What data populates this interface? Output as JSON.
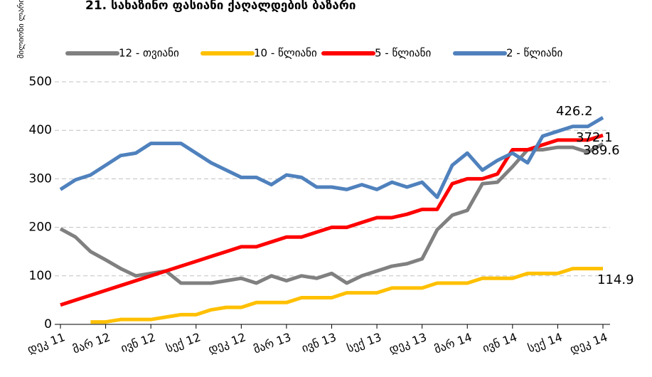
{
  "chart_data": {
    "type": "line",
    "title": "21. სახაზინო ფასიანი ქაღალდების ბაზარი",
    "y_label": "მილიონი ლარი",
    "categories": [
      "დეკ 11",
      null,
      null,
      "მარ 12",
      null,
      null,
      "ივნ 12",
      null,
      null,
      "სექ 12",
      null,
      null,
      "დეკ 12",
      null,
      null,
      "მარ 13",
      null,
      null,
      "ივნ 13",
      null,
      null,
      "სექ 13",
      null,
      null,
      "დეკ 13",
      null,
      null,
      "მარ 14",
      null,
      null,
      "ივნ 14",
      null,
      null,
      "სექ 14",
      null,
      null,
      "დეკ 14"
    ],
    "series": [
      {
        "name": "12 - თვიანი",
        "color": "#808080",
        "values": [
          197,
          180,
          150,
          133,
          115,
          100,
          105,
          110,
          85,
          85,
          85,
          90,
          95,
          85,
          100,
          90,
          100,
          95,
          105,
          85,
          100,
          110,
          120,
          125,
          135,
          195,
          225,
          235,
          290,
          293,
          325,
          360,
          360,
          365,
          365,
          355,
          372.1
        ]
      },
      {
        "name": "10 - წლიანი",
        "color": "#ffc000",
        "values": [
          null,
          null,
          5,
          5,
          10,
          10,
          10,
          15,
          20,
          20,
          30,
          35,
          35,
          45,
          45,
          45,
          55,
          55,
          55,
          65,
          65,
          65,
          75,
          75,
          75,
          85,
          85,
          85,
          95,
          95,
          95,
          105,
          105,
          105,
          115,
          115,
          114.9
        ]
      },
      {
        "name": "5 - წლიანი",
        "color": "#ff0000",
        "values": [
          40,
          50,
          60,
          70,
          80,
          90,
          100,
          110,
          120,
          130,
          140,
          150,
          160,
          160,
          170,
          180,
          180,
          190,
          200,
          200,
          210,
          220,
          220,
          227,
          237,
          237,
          290,
          300,
          300,
          310,
          360,
          360,
          370,
          380,
          380,
          380,
          389.6
        ]
      },
      {
        "name": "2 - წლიანი",
        "color": "#4f81bd",
        "values": [
          278,
          298,
          308,
          328,
          348,
          353,
          373,
          373,
          373,
          353,
          333,
          318,
          303,
          303,
          288,
          308,
          303,
          283,
          283,
          278,
          288,
          278,
          293,
          283,
          293,
          262,
          328,
          353,
          318,
          338,
          353,
          333,
          388,
          398,
          408,
          408,
          426.2
        ]
      }
    ],
    "ylim": [
      0,
      500
    ],
    "yticks": [
      0,
      100,
      200,
      300,
      400,
      500
    ],
    "grid": true
  }
}
